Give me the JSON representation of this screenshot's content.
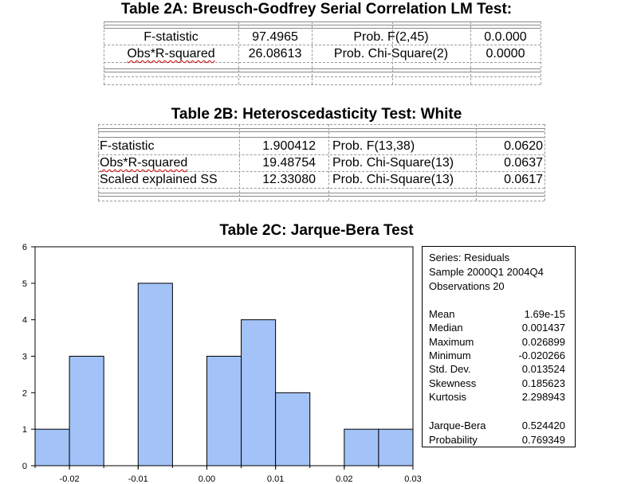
{
  "table2a": {
    "title": "Table 2A: Breusch-Godfrey Serial Correlation LM Test:",
    "rows": [
      {
        "label": "F-statistic",
        "value": "97.4965",
        "prob_label": "Prob. F(2,45)",
        "prob": "0.0.000"
      },
      {
        "label": "Obs*R-squared",
        "value": "26.08613",
        "prob_label": "Prob. Chi-Square(2)",
        "prob": "0.0000"
      }
    ]
  },
  "table2b": {
    "title": "Table 2B: Heteroscedasticity Test: White",
    "rows": [
      {
        "label": "F-statistic",
        "value": "1.900412",
        "prob_label": "Prob. F(13,38)",
        "prob": "0.0620"
      },
      {
        "label": "Obs*R-squared",
        "value": "19.48754",
        "prob_label": "Prob. Chi-Square(13)",
        "prob": "0.0637"
      },
      {
        "label": "Scaled explained SS",
        "value": "12.33080",
        "prob_label": "Prob. Chi-Square(13)",
        "prob": "0.0617"
      }
    ]
  },
  "table2c": {
    "title": "Table 2C: Jarque-Bera Test"
  },
  "stats": {
    "series": "Series: Residuals",
    "sample": "Sample 2000Q1 2004Q4",
    "observations": "Observations 20",
    "rows": [
      {
        "label": "Mean",
        "value": "1.69e-15"
      },
      {
        "label": "Median",
        "value": "0.001437"
      },
      {
        "label": "Maximum",
        "value": "0.026899"
      },
      {
        "label": "Minimum",
        "value": "-0.020266"
      },
      {
        "label": "Std. Dev.",
        "value": "0.013524"
      },
      {
        "label": "Skewness",
        "value": "0.185623"
      },
      {
        "label": "Kurtosis",
        "value": "2.298943"
      }
    ],
    "jb": [
      {
        "label": "Jarque-Bera",
        "value": "0.524420"
      },
      {
        "label": "Probability",
        "value": "0.769349"
      }
    ]
  },
  "chart_data": {
    "type": "bar",
    "title": "",
    "xlabel": "",
    "ylabel": "",
    "bin_width": 0.005,
    "bins": [
      {
        "start": -0.025,
        "end": -0.02,
        "count": 1
      },
      {
        "start": -0.02,
        "end": -0.015,
        "count": 3
      },
      {
        "start": -0.01,
        "end": -0.005,
        "count": 5
      },
      {
        "start": 0.0,
        "end": 0.005,
        "count": 3
      },
      {
        "start": 0.005,
        "end": 0.01,
        "count": 4
      },
      {
        "start": 0.01,
        "end": 0.015,
        "count": 2
      },
      {
        "start": 0.02,
        "end": 0.025,
        "count": 1
      },
      {
        "start": 0.025,
        "end": 0.03,
        "count": 1
      }
    ],
    "xlim": [
      -0.025,
      0.03
    ],
    "ylim": [
      0,
      6
    ],
    "x_ticks": [
      "-0.02",
      "-0.01",
      "0.00",
      "0.01",
      "0.02",
      "0.03"
    ],
    "x_tick_values": [
      -0.02,
      -0.01,
      0.0,
      0.01,
      0.02,
      0.03
    ],
    "y_ticks": [
      "0",
      "1",
      "2",
      "3",
      "4",
      "5",
      "6"
    ],
    "y_tick_values": [
      0,
      1,
      2,
      3,
      4,
      5,
      6
    ],
    "bar_color": "#a3c2f7",
    "bar_edge_color": "#000000",
    "grid": false
  }
}
